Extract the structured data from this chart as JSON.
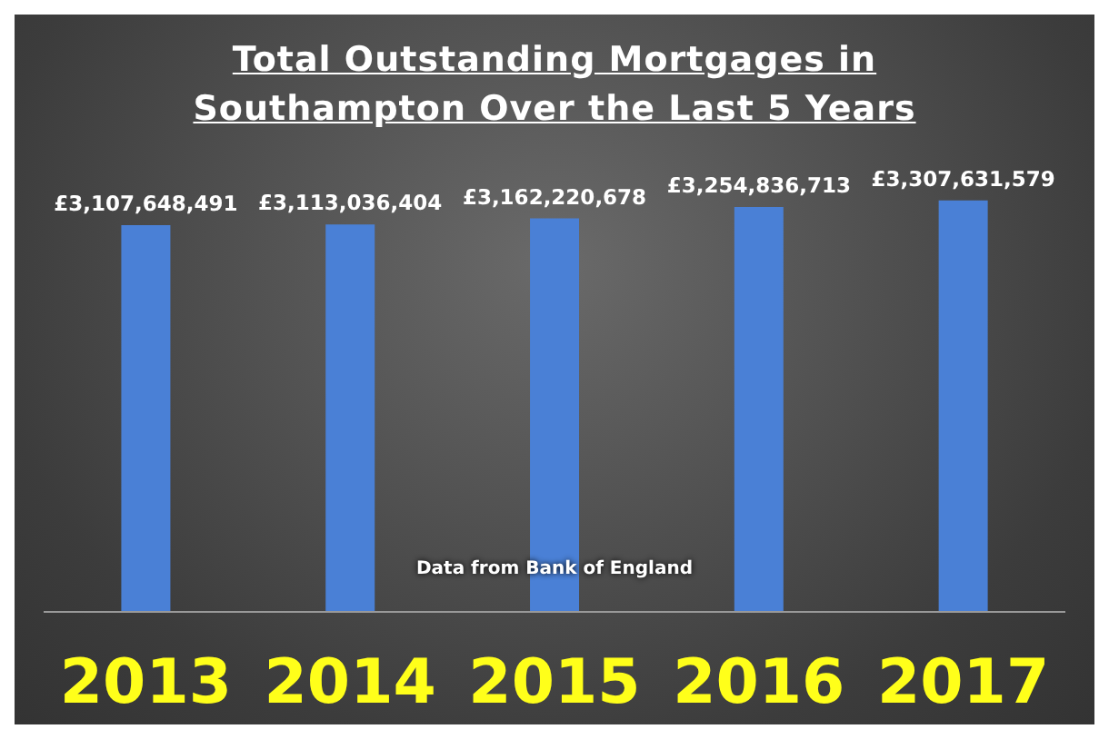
{
  "chart_data": {
    "type": "bar",
    "title": "Total Outstanding Mortgages in Southampton Over the Last 5 Years",
    "categories": [
      "2013",
      "2014",
      "2015",
      "2016",
      "2017"
    ],
    "values": [
      3107648491,
      3113036404,
      3162220678,
      3254836713,
      3307631579
    ],
    "value_labels": [
      "£3,107,648,491",
      "£3,113,036,404",
      "£3,162,220,678",
      "£3,254,836,713",
      "£3,307,631,579"
    ],
    "color": "#4a80d6",
    "tick_labels": "x",
    "annotations": [
      "Data from Bank of England"
    ]
  }
}
